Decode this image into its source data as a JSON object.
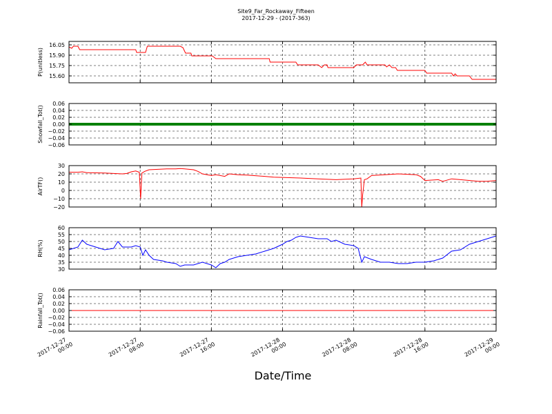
{
  "figure": {
    "title": "Site9_Far_Rockaway_Fifteen",
    "subtitle": "2017-12-29 - (2017-363)",
    "xlabel": "Date/Time"
  },
  "chart_data": {
    "type": "line",
    "x_axis": {
      "type": "datetime",
      "range": [
        "2017-12-27 00:00",
        "2017-12-29 00:00"
      ],
      "ticks": [
        "2017-12-27 00:00",
        "2017-12-27 08:00",
        "2017-12-27 16:00",
        "2017-12-28 00:00",
        "2017-12-28 08:00",
        "2017-12-28 16:00",
        "2017-12-29 00:00"
      ],
      "tick_labels": [
        [
          "2017-12-27",
          "00:00"
        ],
        [
          "2017-12-27",
          "08:00"
        ],
        [
          "2017-12-27",
          "16:00"
        ],
        [
          "2017-12-28",
          "00:00"
        ],
        [
          "2017-12-28",
          "08:00"
        ],
        [
          "2017-12-28",
          "16:00"
        ],
        [
          "2017-12-29",
          "00:00"
        ]
      ]
    },
    "grid": "dashed",
    "panels": [
      {
        "ylabel": "P(unitless)",
        "ylim": [
          15.5,
          16.1
        ],
        "yticks": [
          15.6,
          15.75,
          15.9,
          16.05
        ],
        "ytick_labels": [
          "15.60",
          "15.75",
          "15.90",
          "16.05"
        ],
        "color": "#ff0000",
        "series": [
          {
            "values": [
              [
                0.0,
                16.02
              ],
              [
                0.3,
                16.0
              ],
              [
                0.5,
                16.03
              ],
              [
                1.0,
                16.03
              ],
              [
                1.2,
                15.98
              ],
              [
                3.0,
                15.98
              ],
              [
                7.0,
                15.98
              ],
              [
                7.5,
                15.98
              ],
              [
                7.6,
                15.94
              ],
              [
                8.6,
                15.94
              ],
              [
                8.8,
                16.03
              ],
              [
                9.0,
                16.03
              ],
              [
                12.5,
                16.03
              ],
              [
                12.8,
                16.01
              ],
              [
                13.1,
                15.93
              ],
              [
                13.7,
                15.93
              ],
              [
                13.8,
                15.89
              ],
              [
                16.0,
                15.89
              ],
              [
                16.1,
                15.89
              ],
              [
                16.5,
                15.85
              ],
              [
                22.5,
                15.85
              ],
              [
                22.6,
                15.8
              ],
              [
                25.5,
                15.8
              ],
              [
                25.7,
                15.76
              ],
              [
                28.0,
                15.76
              ],
              [
                28.4,
                15.72
              ],
              [
                28.7,
                15.76
              ],
              [
                29.0,
                15.76
              ],
              [
                29.1,
                15.72
              ],
              [
                32.0,
                15.72
              ],
              [
                32.3,
                15.76
              ],
              [
                33.0,
                15.76
              ],
              [
                33.3,
                15.8
              ],
              [
                33.5,
                15.76
              ],
              [
                35.5,
                15.76
              ],
              [
                35.7,
                15.73
              ],
              [
                36.0,
                15.76
              ],
              [
                36.3,
                15.72
              ],
              [
                36.7,
                15.72
              ],
              [
                36.9,
                15.68
              ],
              [
                40.0,
                15.68
              ],
              [
                40.2,
                15.64
              ],
              [
                43.0,
                15.64
              ],
              [
                43.2,
                15.6
              ],
              [
                43.4,
                15.63
              ],
              [
                43.6,
                15.6
              ],
              [
                45.0,
                15.6
              ],
              [
                45.3,
                15.55
              ],
              [
                48.0,
                15.55
              ]
            ]
          }
        ]
      },
      {
        "ylabel": "Snowfall_Tot()",
        "ylim": [
          -0.06,
          0.06
        ],
        "yticks": [
          -0.06,
          -0.04,
          -0.02,
          0.0,
          0.02,
          0.04,
          0.06
        ],
        "ytick_labels": [
          "−0.06",
          "−0.04",
          "−0.02",
          "0.00",
          "0.02",
          "0.04",
          "0.06"
        ],
        "color": "#008000",
        "series": [
          {
            "values": [
              [
                0,
                0.0
              ],
              [
                48,
                0.0
              ]
            ]
          }
        ]
      },
      {
        "ylabel": "AirTF()",
        "ylim": [
          -20,
          30
        ],
        "yticks": [
          -20,
          -10,
          0,
          10,
          20,
          30
        ],
        "ytick_labels": [
          "−20",
          "−10",
          "0",
          "10",
          "20",
          "30"
        ],
        "color": "#ff0000",
        "series": [
          {
            "values": [
              [
                0.0,
                22
              ],
              [
                1.0,
                22
              ],
              [
                1.5,
                22.5
              ],
              [
                2.0,
                21.5
              ],
              [
                4.0,
                21
              ],
              [
                6.0,
                20
              ],
              [
                6.5,
                20.5
              ],
              [
                7.0,
                22.5
              ],
              [
                7.5,
                23.5
              ],
              [
                7.9,
                22
              ],
              [
                8.05,
                -10
              ],
              [
                8.2,
                21
              ],
              [
                8.5,
                23
              ],
              [
                9.0,
                25
              ],
              [
                11.0,
                26
              ],
              [
                12.0,
                26
              ],
              [
                12.5,
                26.5
              ],
              [
                13.0,
                26
              ],
              [
                14.0,
                25
              ],
              [
                14.5,
                23
              ],
              [
                15.0,
                20
              ],
              [
                16.0,
                18
              ],
              [
                16.5,
                19
              ],
              [
                17.5,
                17
              ],
              [
                18.0,
                20
              ],
              [
                19.0,
                19
              ],
              [
                20.0,
                18.5
              ],
              [
                22.0,
                17
              ],
              [
                23.0,
                16
              ],
              [
                26.0,
                15
              ],
              [
                28.0,
                14
              ],
              [
                30.0,
                13
              ],
              [
                32.0,
                14
              ],
              [
                32.8,
                15
              ],
              [
                32.9,
                -20
              ],
              [
                33.0,
                -5
              ],
              [
                33.2,
                13
              ],
              [
                33.5,
                14
              ],
              [
                34.0,
                18
              ],
              [
                35.5,
                19
              ],
              [
                37.0,
                20
              ],
              [
                38.0,
                19.5
              ],
              [
                39.0,
                19
              ],
              [
                39.5,
                17
              ],
              [
                40.0,
                12
              ],
              [
                41.5,
                13
              ],
              [
                42.0,
                11
              ],
              [
                43.0,
                14
              ],
              [
                44.0,
                13
              ],
              [
                46.0,
                11
              ],
              [
                47.0,
                11
              ],
              [
                48.0,
                12
              ]
            ]
          }
        ]
      },
      {
        "ylabel": "RH(%)",
        "ylim": [
          30,
          60
        ],
        "yticks": [
          30,
          35,
          40,
          45,
          50,
          55,
          60
        ],
        "ytick_labels": [
          "30",
          "35",
          "40",
          "45",
          "50",
          "55",
          "60"
        ],
        "color": "#0000ff",
        "series": [
          {
            "values": [
              [
                0.0,
                44
              ],
              [
                1.0,
                46
              ],
              [
                1.5,
                51
              ],
              [
                2.0,
                48
              ],
              [
                2.5,
                47
              ],
              [
                3.5,
                45
              ],
              [
                4.0,
                44
              ],
              [
                5.0,
                45
              ],
              [
                5.5,
                50
              ],
              [
                6.0,
                46
              ],
              [
                7.0,
                46
              ],
              [
                7.5,
                47
              ],
              [
                8.0,
                46
              ],
              [
                8.3,
                40
              ],
              [
                8.6,
                44
              ],
              [
                9.0,
                40
              ],
              [
                9.5,
                37
              ],
              [
                10.5,
                36
              ],
              [
                11.0,
                35
              ],
              [
                12.0,
                34
              ],
              [
                12.5,
                32
              ],
              [
                13.0,
                33
              ],
              [
                14.0,
                33
              ],
              [
                15.0,
                35
              ],
              [
                16.0,
                33
              ],
              [
                16.5,
                31
              ],
              [
                17.0,
                34
              ],
              [
                17.5,
                35
              ],
              [
                18.0,
                37
              ],
              [
                19.0,
                39
              ],
              [
                20.0,
                40
              ],
              [
                21.0,
                41
              ],
              [
                22.0,
                43
              ],
              [
                23.0,
                45
              ],
              [
                24.0,
                48
              ],
              [
                24.5,
                50
              ],
              [
                25.0,
                51
              ],
              [
                25.5,
                53
              ],
              [
                26.0,
                54
              ],
              [
                27.0,
                53
              ],
              [
                28.0,
                52
              ],
              [
                29.0,
                52
              ],
              [
                29.5,
                50
              ],
              [
                30.0,
                51
              ],
              [
                31.0,
                48
              ],
              [
                32.0,
                47
              ],
              [
                32.5,
                45
              ],
              [
                32.9,
                35
              ],
              [
                33.2,
                39
              ],
              [
                34.0,
                37
              ],
              [
                35.0,
                35
              ],
              [
                36.0,
                35
              ],
              [
                37.0,
                34
              ],
              [
                38.0,
                34
              ],
              [
                39.0,
                35
              ],
              [
                40.0,
                35
              ],
              [
                41.0,
                36
              ],
              [
                42.0,
                38
              ],
              [
                43.0,
                43
              ],
              [
                44.0,
                44
              ],
              [
                45.0,
                48
              ],
              [
                46.0,
                50
              ],
              [
                47.0,
                52
              ],
              [
                48.0,
                54
              ]
            ]
          }
        ]
      },
      {
        "ylabel": "Rainfall_Tot()",
        "ylim": [
          -0.06,
          0.06
        ],
        "yticks": [
          -0.06,
          -0.04,
          -0.02,
          0.0,
          0.02,
          0.04,
          0.06
        ],
        "ytick_labels": [
          "−0.06",
          "−0.04",
          "−0.02",
          "0.00",
          "0.02",
          "0.04",
          "0.06"
        ],
        "color": "#ff0000",
        "series": [
          {
            "values": [
              [
                0,
                0.0
              ],
              [
                48,
                0.0
              ]
            ]
          }
        ]
      }
    ]
  }
}
